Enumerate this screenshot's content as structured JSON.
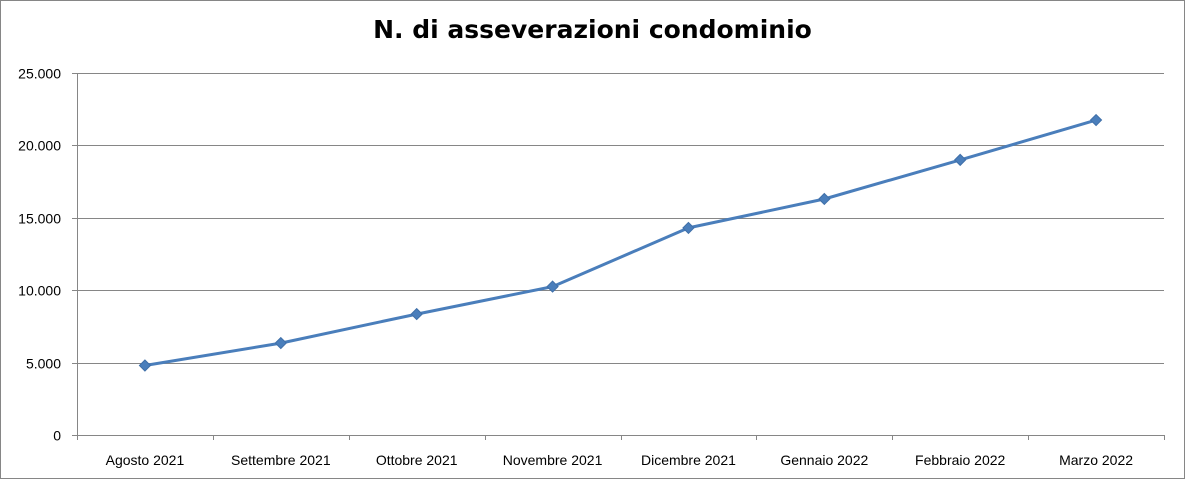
{
  "chart_data": {
    "type": "line",
    "title": "N. di asseverazioni condominio",
    "xlabel": "",
    "ylabel": "",
    "categories": [
      "Agosto 2021",
      "Settembre 2021",
      "Ottobre 2021",
      "Novembre 2021",
      "Dicembre 2021",
      "Gennaio 2022",
      "Febbraio 2022",
      "Marzo 2022"
    ],
    "series": [
      {
        "values": [
          4800,
          6350,
          8350,
          10250,
          14300,
          16300,
          19000,
          21750
        ],
        "color": "#4a7ebb",
        "marker": "diamond"
      }
    ],
    "ylim": [
      0,
      25000
    ],
    "yticks": [
      0,
      5000,
      10000,
      15000,
      20000,
      25000
    ],
    "ytick_labels": [
      "0",
      "5.000",
      "10.000",
      "15.000",
      "20.000",
      "25.000"
    ],
    "grid": true,
    "legend": "none"
  }
}
